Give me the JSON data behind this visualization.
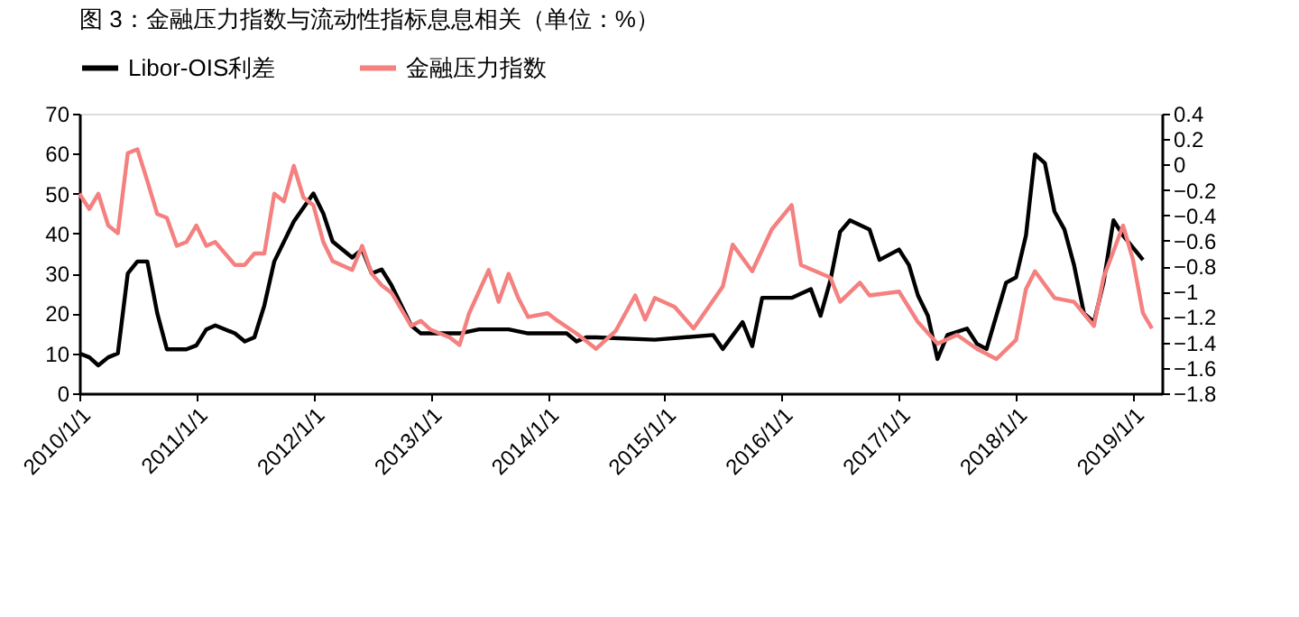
{
  "chart_data": {
    "type": "line",
    "title": "图 3：金融压力指数与流动性指标息息相关（单位：%）",
    "xlim": [
      "2010-01-01",
      "2019-04-01"
    ],
    "xticks": [
      {
        "value": "2010-01-01",
        "label": "2010/1/1"
      },
      {
        "value": "2011-01-01",
        "label": "2011/1/1"
      },
      {
        "value": "2012-01-01",
        "label": "2012/1/1"
      },
      {
        "value": "2013-01-01",
        "label": "2013/1/1"
      },
      {
        "value": "2014-01-01",
        "label": "2014/1/1"
      },
      {
        "value": "2015-01-01",
        "label": "2015/1/1"
      },
      {
        "value": "2016-01-01",
        "label": "2016/1/1"
      },
      {
        "value": "2017-01-01",
        "label": "2017/1/1"
      },
      {
        "value": "2018-01-01",
        "label": "2018/1/1"
      },
      {
        "value": "2019-01-01",
        "label": "2019/1/1"
      }
    ],
    "ylim": [
      0,
      70
    ],
    "yticks": [
      0,
      10,
      20,
      30,
      40,
      50,
      60,
      70
    ],
    "y2lim": [
      -1.8,
      0.4
    ],
    "y2ticks": [
      -1.8,
      -1.6,
      -1.4,
      -1.2,
      -1,
      -0.8,
      -0.6,
      -0.4,
      -0.2,
      0,
      0.2,
      0.4
    ],
    "grid": false,
    "legend": "top",
    "marker": "none",
    "line_style": "solid",
    "series": [
      {
        "name": "Libor-OIS利差",
        "color": "#000000",
        "x": [
          "2010-01",
          "2010-02",
          "2010-03",
          "2010-04",
          "2010-05",
          "2010-06",
          "2010-07",
          "2010-08",
          "2010-09",
          "2010-10",
          "2010-12",
          "2011-01",
          "2011-02",
          "2011-03",
          "2011-05",
          "2011-06",
          "2011-07",
          "2011-08",
          "2011-09",
          "2011-11",
          "2012-01",
          "2012-02",
          "2012-03",
          "2012-05",
          "2012-06",
          "2012-07",
          "2012-08",
          "2012-09",
          "2012-11",
          "2012-12",
          "2013-02",
          "2013-04",
          "2013-06",
          "2013-08",
          "2013-09",
          "2013-11",
          "2014-01",
          "2014-03",
          "2014-04",
          "2014-05",
          "2014-06",
          "2014-12",
          "2015-06",
          "2015-07",
          "2015-09",
          "2015-10",
          "2015-11",
          "2016-02",
          "2016-04",
          "2016-05",
          "2016-06",
          "2016-07",
          "2016-08",
          "2016-10",
          "2016-11",
          "2017-01",
          "2017-02",
          "2017-03",
          "2017-04",
          "2017-05",
          "2017-06",
          "2017-08",
          "2017-09",
          "2017-10",
          "2017-12",
          "2018-01",
          "2018-02",
          "2018-03",
          "2018-04",
          "2018-05",
          "2018-06",
          "2018-07",
          "2018-08",
          "2018-09",
          "2018-10",
          "2018-11",
          "2018-12",
          "2019-02"
        ],
        "values": [
          10,
          9,
          7,
          9,
          10,
          30,
          33,
          33,
          20,
          11,
          11,
          12,
          16,
          17,
          15,
          13,
          14,
          22,
          33,
          43,
          50,
          45,
          38,
          34,
          36,
          30,
          31,
          27,
          17,
          15,
          15,
          15,
          16,
          16,
          16,
          15,
          15,
          15,
          13,
          14,
          14,
          13.4,
          14.6,
          11.1,
          17.8,
          11.8,
          23.9,
          23.9,
          26.1,
          19.4,
          28.3,
          40.4,
          43.3,
          41,
          33.4,
          36,
          32.1,
          24.5,
          19.4,
          8.6,
          14.6,
          16.2,
          12.4,
          11.1,
          27.7,
          29,
          39.5,
          59.8,
          57.6,
          45.5,
          41,
          32.1,
          20,
          17.8,
          27.7,
          43.3,
          39.5,
          33.4
        ]
      },
      {
        "name": "金融压力指数",
        "color": "#f4807f",
        "axis": "y2",
        "x": [
          "2010-01",
          "2010-02",
          "2010-03",
          "2010-04",
          "2010-05",
          "2010-06",
          "2010-07",
          "2010-08",
          "2010-09",
          "2010-10",
          "2010-11",
          "2010-12",
          "2011-01",
          "2011-02",
          "2011-03",
          "2011-05",
          "2011-06",
          "2011-07",
          "2011-08",
          "2011-09",
          "2011-10",
          "2011-11",
          "2011-12",
          "2012-01",
          "2012-02",
          "2012-03",
          "2012-05",
          "2012-06",
          "2012-07",
          "2012-08",
          "2012-09",
          "2012-11",
          "2012-12",
          "2013-01",
          "2013-03",
          "2013-04",
          "2013-05",
          "2013-07",
          "2013-08",
          "2013-09",
          "2013-10",
          "2013-11",
          "2014-01",
          "2014-02",
          "2014-04",
          "2014-06",
          "2014-08",
          "2014-10",
          "2014-11",
          "2014-12",
          "2015-02",
          "2015-04",
          "2015-07",
          "2015-08",
          "2015-10",
          "2015-12",
          "2016-02",
          "2016-03",
          "2016-06",
          "2016-07",
          "2016-09",
          "2016-10",
          "2017-01",
          "2017-03",
          "2017-05",
          "2017-07",
          "2017-09",
          "2017-11",
          "2018-01",
          "2018-02",
          "2018-03",
          "2018-05",
          "2018-07",
          "2018-09",
          "2018-10",
          "2018-12",
          "2019-01",
          "2019-02",
          "2019-03"
        ],
        "values": [
          -0.23,
          -0.35,
          -0.23,
          -0.48,
          -0.54,
          0.09,
          0.12,
          -0.13,
          -0.39,
          -0.42,
          -0.64,
          -0.61,
          -0.48,
          -0.64,
          -0.61,
          -0.79,
          -0.79,
          -0.7,
          -0.7,
          -0.23,
          -0.29,
          -0.01,
          -0.26,
          -0.32,
          -0.61,
          -0.76,
          -0.83,
          -0.64,
          -0.86,
          -0.95,
          -1.01,
          -1.27,
          -1.23,
          -1.3,
          -1.36,
          -1.42,
          -1.17,
          -0.83,
          -1.08,
          -0.86,
          -1.05,
          -1.2,
          -1.17,
          -1.23,
          -1.33,
          -1.45,
          -1.31,
          -1.03,
          -1.22,
          -1.05,
          -1.12,
          -1.29,
          -0.96,
          -0.63,
          -0.84,
          -0.51,
          -0.32,
          -0.79,
          -0.89,
          -1.08,
          -0.93,
          -1.03,
          -1,
          -1.24,
          -1.41,
          -1.34,
          -1.45,
          -1.53,
          -1.38,
          -0.98,
          -0.84,
          -1.05,
          -1.08,
          -1.27,
          -0.89,
          -0.48,
          -0.75,
          -1.17,
          -1.29
        ]
      }
    ]
  }
}
